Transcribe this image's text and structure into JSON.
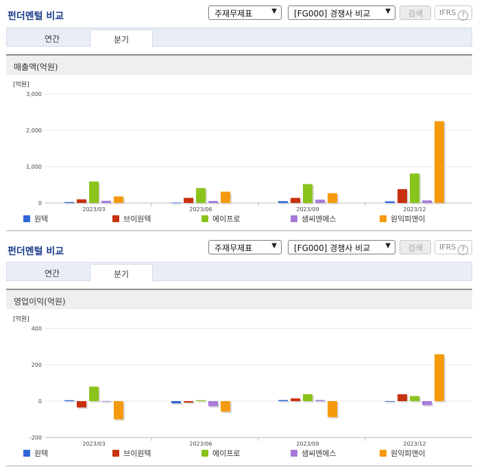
{
  "colors": [
    "#2f68d6",
    "#c8310e",
    "#8ac31c",
    "#a77bd9",
    "#f59a0c"
  ],
  "sections": [
    {
      "title": "펀더멘털 비교",
      "select_report": "주재무제표",
      "select_compare": "[FG000] 경쟁사 비교",
      "search_label": "검색",
      "ifrs_label": "IFRS",
      "ifrs_help": "?",
      "tabs": [
        "연간",
        "분기"
      ],
      "active_tab": 1,
      "panel_title": "매출액(억원)"
    },
    {
      "title": "펀더멘털 비교",
      "select_report": "주재무제표",
      "select_compare": "[FG000] 경쟁사 비교",
      "search_label": "검색",
      "ifrs_label": "IFRS",
      "ifrs_help": "?",
      "tabs": [
        "연간",
        "분기"
      ],
      "active_tab": 1,
      "panel_title": "영업이익(억원)"
    }
  ],
  "chart_data": [
    {
      "type": "bar",
      "unit": "[억원]",
      "categories": [
        "2023/03",
        "2023/06",
        "2023/09",
        "2023/12"
      ],
      "ylim": [
        0,
        3000
      ],
      "yticks": [
        0,
        1000,
        2000,
        3000
      ],
      "ytick_labels": [
        "0",
        "1,000",
        "2,000",
        "3,000"
      ],
      "series": [
        {
          "name": "원텍",
          "values": [
            25,
            10,
            50,
            45
          ]
        },
        {
          "name": "브이원텍",
          "values": [
            100,
            140,
            140,
            380
          ]
        },
        {
          "name": "에이프로",
          "values": [
            590,
            410,
            520,
            810
          ]
        },
        {
          "name": "샘씨엔에스",
          "values": [
            60,
            55,
            90,
            70
          ]
        },
        {
          "name": "원익피앤이",
          "values": [
            180,
            310,
            270,
            2250
          ]
        }
      ]
    },
    {
      "type": "bar",
      "unit": "[억원]",
      "categories": [
        "2023/03",
        "2023/06",
        "2023/09",
        "2023/12"
      ],
      "ylim": [
        -200,
        400
      ],
      "yticks": [
        -200,
        0,
        200,
        400
      ],
      "ytick_labels": [
        "-200",
        "0",
        "200",
        "400"
      ],
      "series": [
        {
          "name": "원텍",
          "values": [
            5,
            -12,
            6,
            -4
          ]
        },
        {
          "name": "브이원텍",
          "values": [
            -35,
            -8,
            15,
            38
          ]
        },
        {
          "name": "에이프로",
          "values": [
            80,
            5,
            38,
            28
          ]
        },
        {
          "name": "샘씨엔에스",
          "values": [
            -3,
            -28,
            6,
            -22
          ]
        },
        {
          "name": "원익피앤이",
          "values": [
            -100,
            -58,
            -88,
            258
          ]
        }
      ]
    }
  ]
}
